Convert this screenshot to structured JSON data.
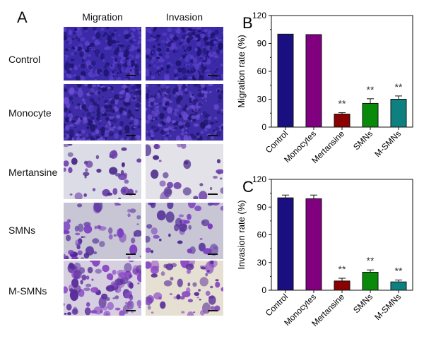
{
  "panel_a": {
    "letter": "A",
    "columns": [
      "Migration",
      "Invasion"
    ],
    "rows": [
      "Control",
      "Monocyte",
      "Mertansine",
      "SMNs",
      "M-SMNs"
    ]
  },
  "colors": {
    "Control": "#1a0f80",
    "Monocytes": "#800080",
    "Mertansine": "#8b0000",
    "SMNs": "#0a8a0a",
    "M-SMNs": "#0f8080"
  },
  "chart_data": [
    {
      "type": "bar",
      "panel": "B",
      "categories": [
        "Control",
        "Monocytes",
        "Mertansine",
        "SMNs",
        "M-SMNs"
      ],
      "values": [
        100,
        99.5,
        14,
        25.5,
        30
      ],
      "errors": [
        0,
        0,
        1.5,
        5,
        3.5
      ],
      "significance": [
        "",
        "",
        "**",
        "**",
        "**"
      ],
      "ylabel": "Migration rate (%)",
      "ylim": [
        0,
        120
      ],
      "yticks": [
        0,
        30,
        60,
        90,
        120
      ]
    },
    {
      "type": "bar",
      "panel": "C",
      "categories": [
        "Control",
        "Monocytes",
        "Mertansine",
        "SMNs",
        "M-SMNs"
      ],
      "values": [
        100,
        99,
        10,
        19.5,
        9
      ],
      "errors": [
        3,
        4,
        3,
        2.5,
        2
      ],
      "significance": [
        "",
        "",
        "**",
        "**",
        "**"
      ],
      "ylabel": "Invasion rate (%)",
      "ylim": [
        0,
        120
      ],
      "yticks": [
        0,
        30,
        60,
        90,
        120
      ]
    }
  ]
}
